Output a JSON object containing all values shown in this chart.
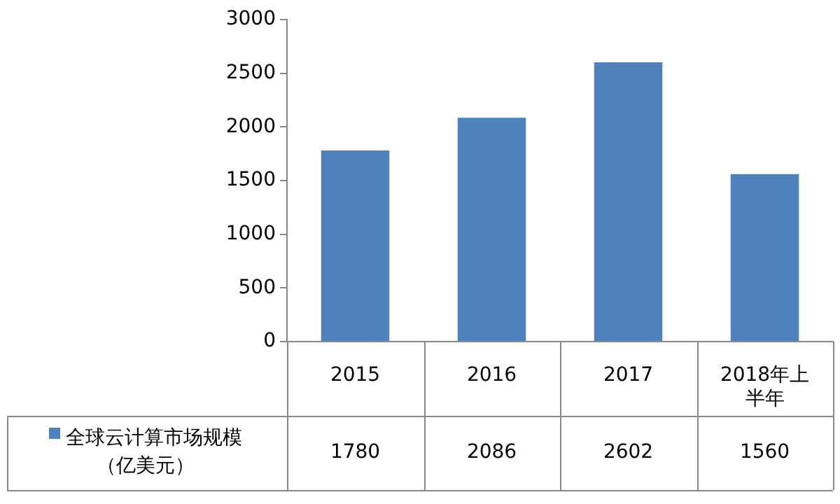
{
  "chart_data": {
    "type": "bar",
    "categories": [
      "2015",
      "2016",
      "2017",
      "2018年上半年"
    ],
    "series": [
      {
        "name": "全球云计算市场规模（亿美元）",
        "color": "#4f81bd",
        "values": [
          1780,
          2086,
          2602,
          1560
        ]
      }
    ],
    "ylim": [
      0,
      3000
    ],
    "yticks": [
      0,
      500,
      1000,
      1500,
      2000,
      2500,
      3000
    ],
    "grid": false,
    "legend": "bottom left",
    "data_labels": true
  }
}
